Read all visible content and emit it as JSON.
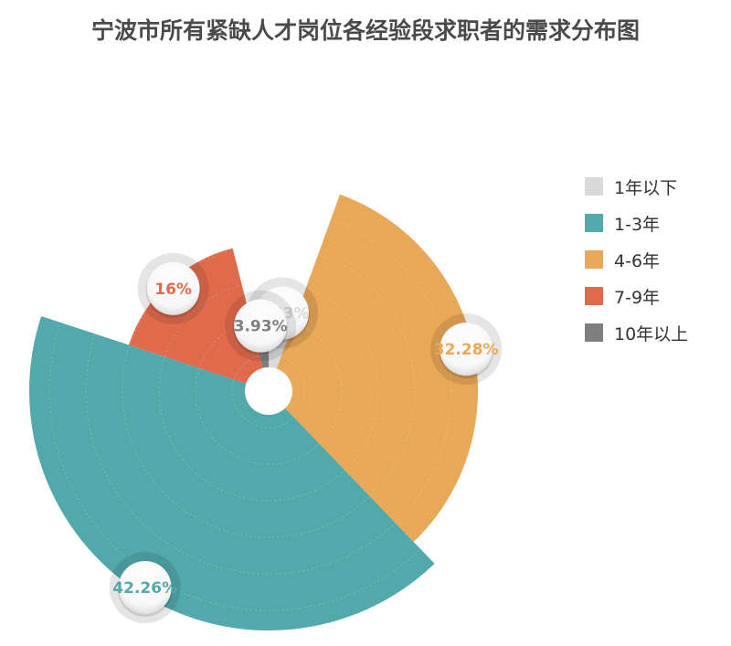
{
  "title": "宁波市所有紧缺人才岗位各经验段求职者的需求分布图",
  "chart_data": {
    "type": "pie",
    "subtype": "rose",
    "title": "宁波市所有紧缺人才岗位各经验段求职者的需求分布图",
    "legend_position": "right",
    "slices": [
      {
        "name": "1年以下",
        "value": 5.53,
        "label": "5.53%",
        "color": "#d9d9d9"
      },
      {
        "name": "4-6年",
        "value": 32.28,
        "label": "32.28%",
        "color": "#e8a857"
      },
      {
        "name": "1-3年",
        "value": 42.26,
        "label": "42.26%",
        "color": "#52a9ac"
      },
      {
        "name": "7-9年",
        "value": 16,
        "label": "16%",
        "color": "#e06a4c"
      },
      {
        "name": "10年以上",
        "value": 3.93,
        "label": "3.93%",
        "color": "#7f7f7f"
      }
    ]
  },
  "legend": {
    "items": [
      {
        "label": "1年以下",
        "color": "#d9d9d9"
      },
      {
        "label": "1-3年",
        "color": "#52a9ac"
      },
      {
        "label": "4-6年",
        "color": "#e8a857"
      },
      {
        "label": "7-9年",
        "color": "#e06a4c"
      },
      {
        "label": "10年以上",
        "color": "#7f7f7f"
      }
    ]
  }
}
